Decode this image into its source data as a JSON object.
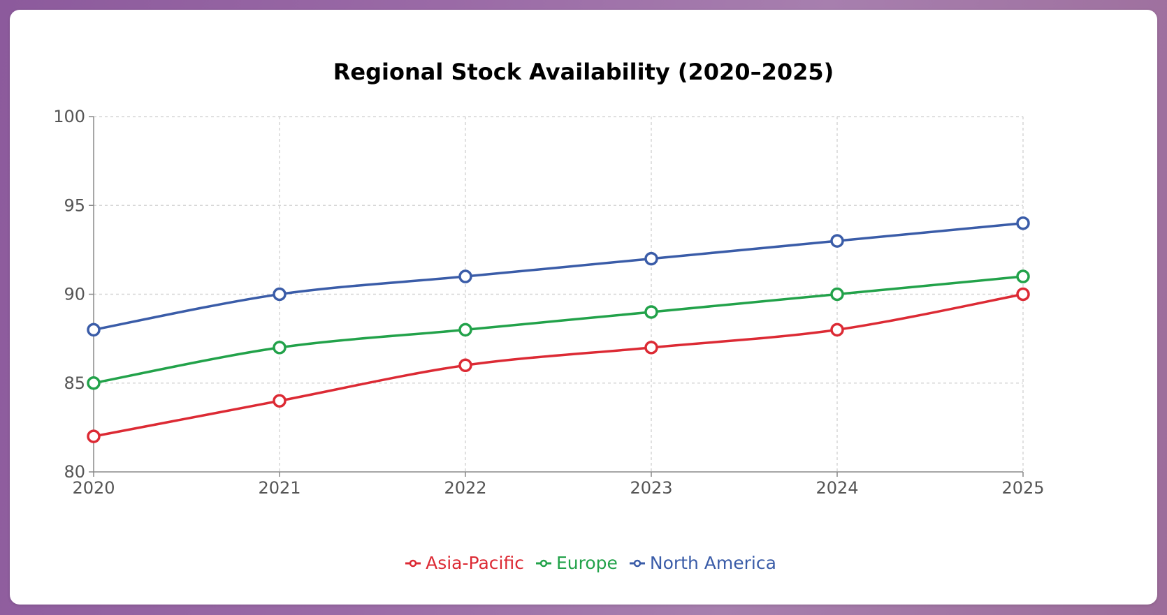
{
  "chart_data": {
    "type": "line",
    "title": "Regional Stock Availability (2020–2025)",
    "x": [
      "2020",
      "2021",
      "2022",
      "2023",
      "2024",
      "2025"
    ],
    "ylim": [
      80,
      100
    ],
    "yticks": [
      "80",
      "85",
      "90",
      "95",
      "100"
    ],
    "grid": true,
    "legend_position": "bottom-center",
    "series": [
      {
        "name": "Asia-Pacific",
        "color": "#dc2a34",
        "values": [
          82,
          84,
          86,
          87,
          88,
          90
        ]
      },
      {
        "name": "Europe",
        "color": "#22a24a",
        "values": [
          85,
          87,
          88,
          89,
          90,
          91
        ]
      },
      {
        "name": "North America",
        "color": "#3a5ca8",
        "values": [
          88,
          90,
          91,
          92,
          93,
          94
        ]
      }
    ]
  }
}
